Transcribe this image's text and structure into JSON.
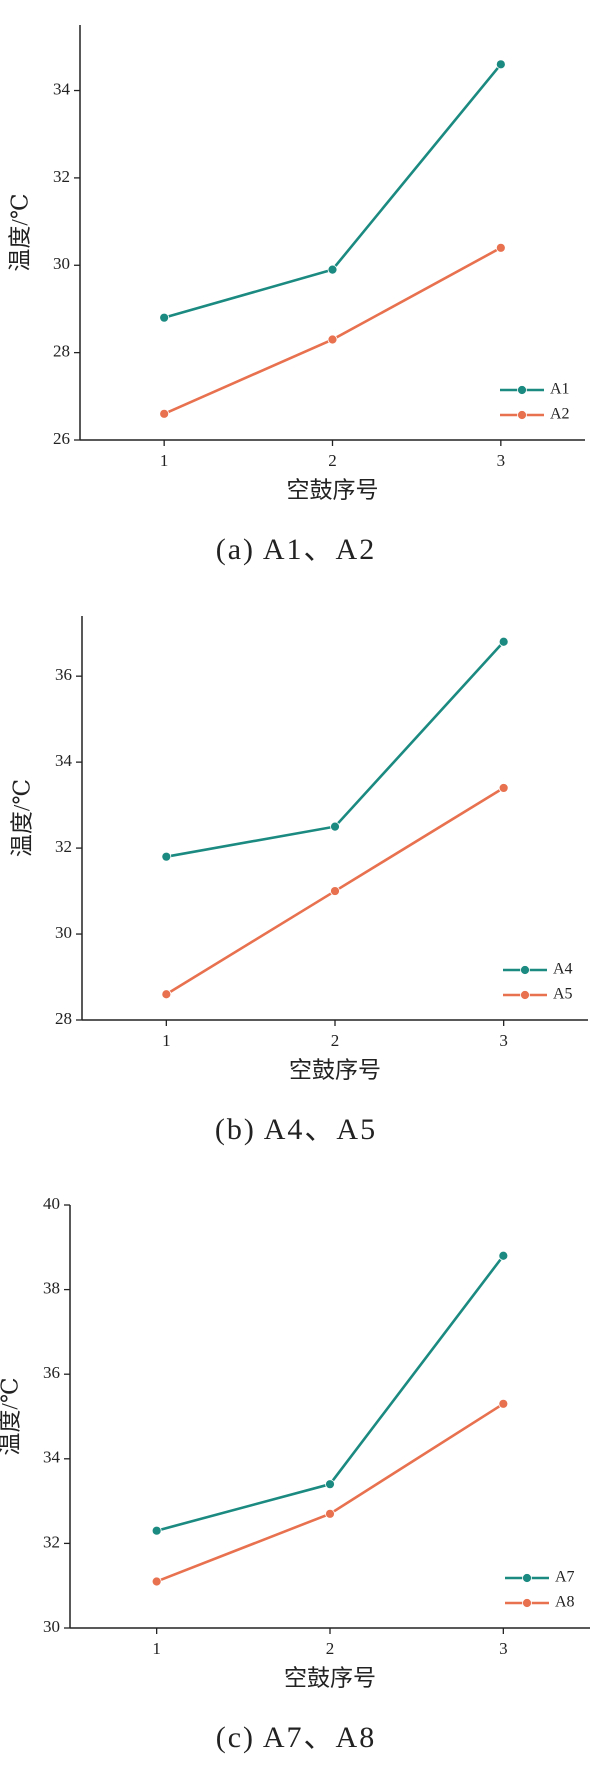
{
  "chart_data": [
    {
      "type": "line",
      "caption": "(a) A1、A2",
      "xlabel": "空鼓序号",
      "ylabel": "温度/℃",
      "x": [
        1,
        2,
        3
      ],
      "xlim": [
        0.5,
        3.5
      ],
      "xticks": [
        1,
        2,
        3
      ],
      "ylim": [
        26,
        35.5
      ],
      "yticks": [
        26,
        28,
        30,
        32,
        34
      ],
      "legend": "lower right",
      "series": [
        {
          "name": "A1",
          "color": "#1b8a80",
          "values": [
            28.8,
            29.9,
            34.6
          ]
        },
        {
          "name": "A2",
          "color": "#e8714f",
          "values": [
            26.6,
            28.3,
            30.4
          ]
        }
      ]
    },
    {
      "type": "line",
      "caption": "(b) A4、A5",
      "xlabel": "空鼓序号",
      "ylabel": "温度/℃",
      "x": [
        1,
        2,
        3
      ],
      "xlim": [
        0.5,
        3.5
      ],
      "xticks": [
        1,
        2,
        3
      ],
      "ylim": [
        28,
        37.4
      ],
      "yticks": [
        28,
        30,
        32,
        34,
        36
      ],
      "legend": "lower right",
      "series": [
        {
          "name": "A4",
          "color": "#1b8a80",
          "values": [
            31.8,
            32.5,
            36.8
          ]
        },
        {
          "name": "A5",
          "color": "#e8714f",
          "values": [
            28.6,
            31.0,
            33.4
          ]
        }
      ]
    },
    {
      "type": "line",
      "caption": "(c) A7、A8",
      "xlabel": "空鼓序号",
      "ylabel": "温度/℃",
      "x": [
        1,
        2,
        3
      ],
      "xlim": [
        0.5,
        3.5
      ],
      "xticks": [
        1,
        2,
        3
      ],
      "ylim": [
        30,
        40
      ],
      "yticks": [
        30,
        32,
        34,
        36,
        38,
        40
      ],
      "legend": "lower right",
      "series": [
        {
          "name": "A7",
          "color": "#1b8a80",
          "values": [
            32.3,
            33.4,
            38.8
          ]
        },
        {
          "name": "A8",
          "color": "#e8714f",
          "values": [
            31.1,
            32.7,
            35.3
          ]
        }
      ]
    }
  ]
}
